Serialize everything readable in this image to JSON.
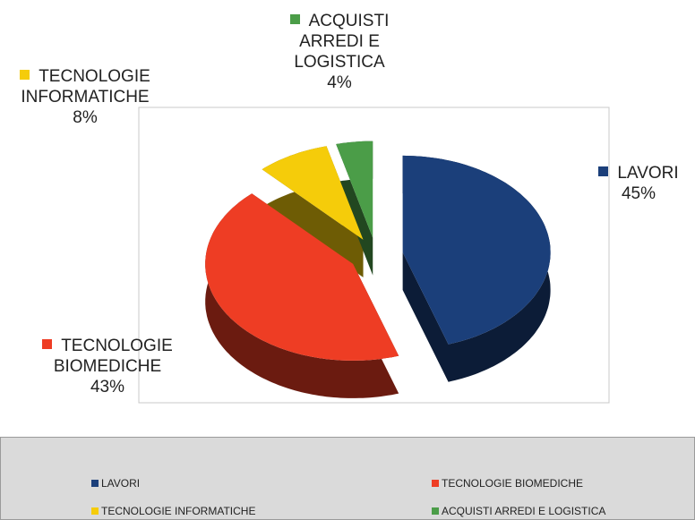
{
  "chart_data": {
    "type": "pie",
    "categories": [
      "LAVORI",
      "TECNOLOGIE BIOMEDICHE",
      "TECNOLOGIE INFORMATICHE",
      "ACQUISTI ARREDI E LOGISTICA"
    ],
    "values": [
      45,
      43,
      8,
      4
    ],
    "value_labels": [
      "45%",
      "43%",
      "8%",
      "4%"
    ],
    "colors": [
      "#1b3f7a",
      "#ee3d24",
      "#f5cc0a",
      "#4b9d48"
    ],
    "legend": "bottom"
  }
}
